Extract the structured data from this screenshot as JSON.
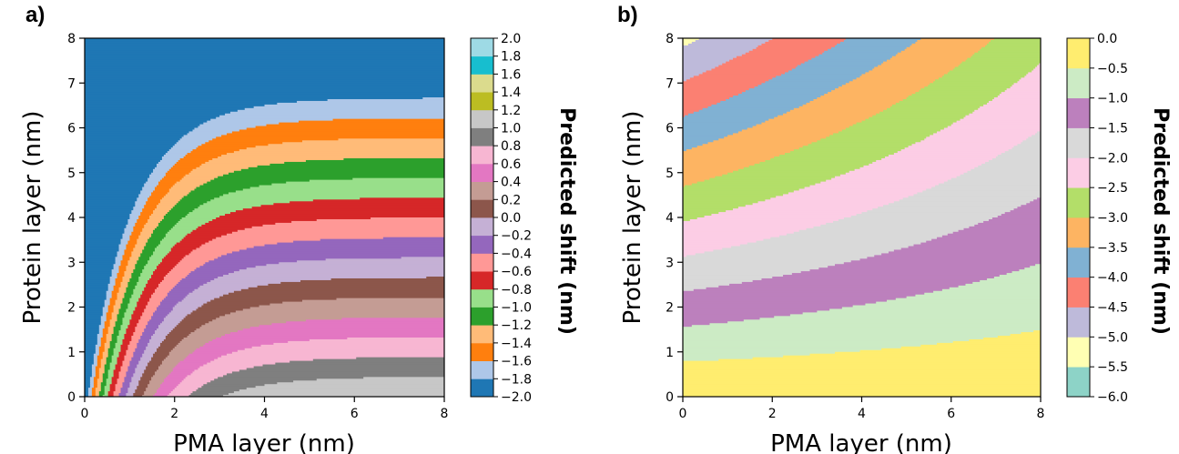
{
  "chart_data": [
    {
      "type": "heatmap",
      "subtype": "filled-contour",
      "panel_label": "a)",
      "title": "",
      "xlabel": "PMA layer (nm)",
      "ylabel": "Protein layer (nm)",
      "xlim": [
        0,
        8
      ],
      "ylim": [
        0,
        8
      ],
      "xticks": [
        "0",
        "2",
        "4",
        "6",
        "8"
      ],
      "yticks": [
        "0",
        "1",
        "2",
        "3",
        "4",
        "5",
        "6",
        "7",
        "8"
      ],
      "colorbar": {
        "label": "Predicted shift (nm)",
        "levels": [
          -2.0,
          -1.8,
          -1.6,
          -1.4,
          -1.2,
          -1.0,
          -0.8,
          -0.6,
          -0.4,
          -0.2,
          0.0,
          0.2,
          0.4,
          0.6,
          0.8,
          1.0,
          1.2,
          1.4,
          1.6,
          1.8,
          2.0
        ],
        "tick_labels": [
          "−2.0",
          "−1.8",
          "−1.6",
          "−1.4",
          "−1.2",
          "−1.0",
          "−0.8",
          "−0.6",
          "−0.4",
          "−0.2",
          "0.0",
          "0.2",
          "0.4",
          "0.6",
          "0.8",
          "1.0",
          "1.2",
          "1.4",
          "1.6",
          "1.8",
          "2.0"
        ],
        "colors": [
          "#1f77b4",
          "#aec7e8",
          "#ff7f0e",
          "#ffbb78",
          "#2ca02c",
          "#98df8a",
          "#d62728",
          "#ff9896",
          "#9467bd",
          "#c5b0d5",
          "#8c564b",
          "#c49c94",
          "#e377c2",
          "#f7b6d2",
          "#7f7f7f",
          "#c7c7c7",
          "#bcbd22",
          "#dbdb8d",
          "#17becf",
          "#9edae5"
        ]
      }
    },
    {
      "type": "heatmap",
      "subtype": "filled-contour",
      "panel_label": "b)",
      "title": "",
      "xlabel": "PMA layer (nm)",
      "ylabel": "Protein layer (nm)",
      "xlim": [
        0,
        8
      ],
      "ylim": [
        0,
        8
      ],
      "xticks": [
        "0",
        "2",
        "4",
        "6",
        "8"
      ],
      "yticks": [
        "0",
        "1",
        "2",
        "3",
        "4",
        "5",
        "6",
        "7",
        "8"
      ],
      "colorbar": {
        "label": "Predicted shift (nm)",
        "levels": [
          -6.0,
          -5.5,
          -5.0,
          -4.5,
          -4.0,
          -3.5,
          -3.0,
          -2.5,
          -2.0,
          -1.5,
          -1.0,
          -0.5,
          0.0
        ],
        "tick_labels": [
          "−6.0",
          "−5.5",
          "−5.0",
          "−4.5",
          "−4.0",
          "−3.5",
          "−3.0",
          "−2.5",
          "−2.0",
          "−1.5",
          "−1.0",
          "−0.5",
          "0.0"
        ],
        "colors": [
          "#8dd3c7",
          "#ffffb3",
          "#bebada",
          "#fb8072",
          "#80b1d3",
          "#fdb462",
          "#b3de69",
          "#fccde5",
          "#d9d9d9",
          "#bc80bd",
          "#ccebc5",
          "#ffed6f"
        ]
      }
    }
  ]
}
